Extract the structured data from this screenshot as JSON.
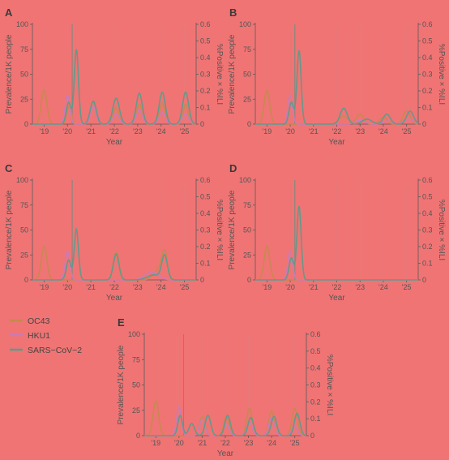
{
  "figure": {
    "legend": [
      {
        "name": "OC43",
        "color": "#c6894e"
      },
      {
        "name": "HKU1",
        "color": "#c87bb8"
      },
      {
        "name": "SARS−CoV−2",
        "color": "#5f9a8a"
      }
    ]
  },
  "chart_data": [
    {
      "panel": "A",
      "type": "line",
      "xlabel": "Year",
      "ylabel": "Prevalence/1K people",
      "y2label": "%Positive × %ILI",
      "xlim": [
        2018.5,
        2025.5
      ],
      "ylim": [
        0,
        100
      ],
      "y2lim": [
        0,
        0.6
      ],
      "xticks": [
        2019,
        2020,
        2021,
        2022,
        2023,
        2024,
        2025
      ],
      "xtick_labels": [
        "'19",
        "'20",
        "'21",
        "'22",
        "'23",
        "'24",
        "'25"
      ],
      "yticks": [
        0,
        25,
        50,
        75,
        100
      ],
      "y2ticks": [
        0,
        0.1,
        0.2,
        0.3,
        0.4,
        0.5,
        0.6
      ],
      "vline_x": 2020.2,
      "series": [
        {
          "name": "OC43",
          "peaks": [
            [
              2019.0,
              34,
              0.12
            ],
            [
              2020.07,
              18,
              0.1
            ],
            [
              2021.1,
              22,
              0.12
            ],
            [
              2022.08,
              17,
              0.12
            ],
            [
              2023.07,
              20,
              0.12
            ],
            [
              2024.05,
              21,
              0.12
            ],
            [
              2025.05,
              20,
              0.1
            ]
          ]
        },
        {
          "name": "HKU1",
          "peaks": [
            [
              2020.0,
              29,
              0.1
            ],
            [
              2021.1,
              18,
              0.12
            ],
            [
              2022.08,
              10,
              0.13
            ],
            [
              2023.07,
              14,
              0.13
            ],
            [
              2024.05,
              12,
              0.13
            ],
            [
              2025.05,
              10,
              0.13
            ]
          ]
        },
        {
          "name": "SARS−CoV−2",
          "peaks": [
            [
              2020.05,
              22,
              0.1
            ],
            [
              2020.38,
              75,
              0.09
            ],
            [
              2021.1,
              23,
              0.13
            ],
            [
              2022.08,
              26,
              0.14
            ],
            [
              2023.07,
              31,
              0.13
            ],
            [
              2024.05,
              32,
              0.13
            ],
            [
              2025.05,
              32,
              0.13
            ]
          ]
        }
      ]
    },
    {
      "panel": "B",
      "type": "line",
      "xlabel": "Year",
      "ylabel": "Prevalence/1K people",
      "y2label": "%Positive × %ILI",
      "xlim": [
        2018.5,
        2025.5
      ],
      "ylim": [
        0,
        100
      ],
      "y2lim": [
        0,
        0.6
      ],
      "xticks": [
        2019,
        2020,
        2021,
        2022,
        2023,
        2024,
        2025
      ],
      "xtick_labels": [
        "'19",
        "'20",
        "'21",
        "'22",
        "'23",
        "'24",
        "'25"
      ],
      "yticks": [
        0,
        25,
        50,
        75,
        100
      ],
      "y2ticks": [
        0,
        0.1,
        0.2,
        0.3,
        0.4,
        0.5,
        0.6
      ],
      "vline_x": 2020.2,
      "series": [
        {
          "name": "OC43",
          "peaks": [
            [
              2019.0,
              34,
              0.12
            ],
            [
              2022.3,
              8,
              0.2
            ],
            [
              2023.0,
              10,
              0.15
            ],
            [
              2024.0,
              7,
              0.15
            ],
            [
              2025.0,
              13,
              0.15
            ]
          ]
        },
        {
          "name": "HKU1",
          "peaks": [
            [
              2020.0,
              29,
              0.1
            ],
            [
              2023.0,
              4,
              0.2
            ],
            [
              2024.2,
              3,
              0.2
            ],
            [
              2025.1,
              5,
              0.2
            ]
          ]
        },
        {
          "name": "SARS−CoV−2",
          "peaks": [
            [
              2020.05,
              22,
              0.1
            ],
            [
              2020.38,
              74,
              0.09
            ],
            [
              2022.3,
              16,
              0.15
            ],
            [
              2023.3,
              5,
              0.2
            ],
            [
              2024.15,
              10,
              0.15
            ],
            [
              2025.15,
              13,
              0.15
            ]
          ]
        }
      ]
    },
    {
      "panel": "C",
      "type": "line",
      "xlabel": "Year",
      "ylabel": "Prevalence/1K people",
      "y2label": "%Positive × %ILI",
      "xlim": [
        2018.5,
        2025.5
      ],
      "ylim": [
        0,
        100
      ],
      "y2lim": [
        0,
        0.6
      ],
      "xticks": [
        2019,
        2020,
        2021,
        2022,
        2023,
        2024,
        2025
      ],
      "xtick_labels": [
        "'19",
        "'20",
        "'21",
        "'22",
        "'23",
        "'24",
        "'25"
      ],
      "yticks": [
        0,
        25,
        50,
        75,
        100
      ],
      "y2ticks": [
        0,
        0.1,
        0.2,
        0.3,
        0.4,
        0.5,
        0.6
      ],
      "vline_x": 2020.2,
      "series": [
        {
          "name": "OC43",
          "peaks": [
            [
              2019.0,
              34,
              0.12
            ],
            [
              2022.08,
              28,
              0.12
            ],
            [
              2023.9,
              10,
              0.22
            ],
            [
              2024.15,
              25,
              0.12
            ]
          ]
        },
        {
          "name": "HKU1",
          "peaks": [
            [
              2020.0,
              29,
              0.1
            ],
            [
              2023.6,
              8,
              0.28
            ]
          ]
        },
        {
          "name": "SARS−CoV−2",
          "peaks": [
            [
              2020.05,
              20,
              0.1
            ],
            [
              2020.38,
              51,
              0.09
            ],
            [
              2022.08,
              26,
              0.12
            ],
            [
              2023.7,
              5,
              0.28
            ],
            [
              2024.15,
              24,
              0.12
            ]
          ]
        }
      ]
    },
    {
      "panel": "D",
      "type": "line",
      "xlabel": "Year",
      "ylabel": "Prevalence/1K people",
      "y2label": "%Positive × %ILI",
      "xlim": [
        2018.5,
        2025.5
      ],
      "ylim": [
        0,
        100
      ],
      "y2lim": [
        0,
        0.6
      ],
      "xticks": [
        2019,
        2020,
        2021,
        2022,
        2023,
        2024,
        2025
      ],
      "xtick_labels": [
        "'19",
        "'20",
        "'21",
        "'22",
        "'23",
        "'24",
        "'25"
      ],
      "yticks": [
        0,
        25,
        50,
        75,
        100
      ],
      "y2ticks": [
        0,
        0.1,
        0.2,
        0.3,
        0.4,
        0.5,
        0.6
      ],
      "vline_x": 2020.2,
      "series": [
        {
          "name": "OC43",
          "peaks": [
            [
              2019.0,
              34,
              0.12
            ]
          ]
        },
        {
          "name": "HKU1",
          "peaks": [
            [
              2020.0,
              29,
              0.1
            ]
          ]
        },
        {
          "name": "SARS−CoV−2",
          "peaks": [
            [
              2020.05,
              22,
              0.1
            ],
            [
              2020.38,
              74,
              0.09
            ]
          ]
        }
      ]
    },
    {
      "panel": "E",
      "type": "line",
      "xlabel": "Year",
      "ylabel": "Prevalence/1K people",
      "y2label": "%Positive × %ILI",
      "xlim": [
        2018.5,
        2025.5
      ],
      "ylim": [
        0,
        100
      ],
      "y2lim": [
        0,
        0.6
      ],
      "xticks": [
        2019,
        2020,
        2021,
        2022,
        2023,
        2024,
        2025
      ],
      "xtick_labels": [
        "'19",
        "'20",
        "'21",
        "'22",
        "'23",
        "'24",
        "'25"
      ],
      "yticks": [
        0,
        25,
        50,
        75,
        100
      ],
      "y2ticks": [
        0,
        0.1,
        0.2,
        0.3,
        0.4,
        0.5,
        0.6
      ],
      "vline_x": 2020.2,
      "series": [
        {
          "name": "OC43",
          "peaks": [
            [
              2019.0,
              34,
              0.12
            ],
            [
              2021.0,
              19,
              0.12
            ],
            [
              2022.05,
              18,
              0.12
            ],
            [
              2023.05,
              27,
              0.12
            ],
            [
              2024.0,
              24,
              0.12
            ],
            [
              2025.0,
              27,
              0.12
            ]
          ]
        },
        {
          "name": "HKU1",
          "peaks": [
            [
              2020.0,
              29,
              0.1
            ],
            [
              2021.0,
              16,
              0.12
            ],
            [
              2022.05,
              11,
              0.12
            ],
            [
              2023.05,
              13,
              0.12
            ],
            [
              2024.0,
              18,
              0.12
            ],
            [
              2025.0,
              9,
              0.12
            ]
          ]
        },
        {
          "name": "SARS−CoV−2",
          "peaks": [
            [
              2020.05,
              20,
              0.1
            ],
            [
              2020.55,
              12,
              0.12
            ],
            [
              2021.25,
              20,
              0.12
            ],
            [
              2022.1,
              20,
              0.12
            ],
            [
              2023.1,
              18,
              0.12
            ],
            [
              2024.1,
              19,
              0.12
            ],
            [
              2025.1,
              22,
              0.12
            ]
          ]
        }
      ]
    }
  ]
}
